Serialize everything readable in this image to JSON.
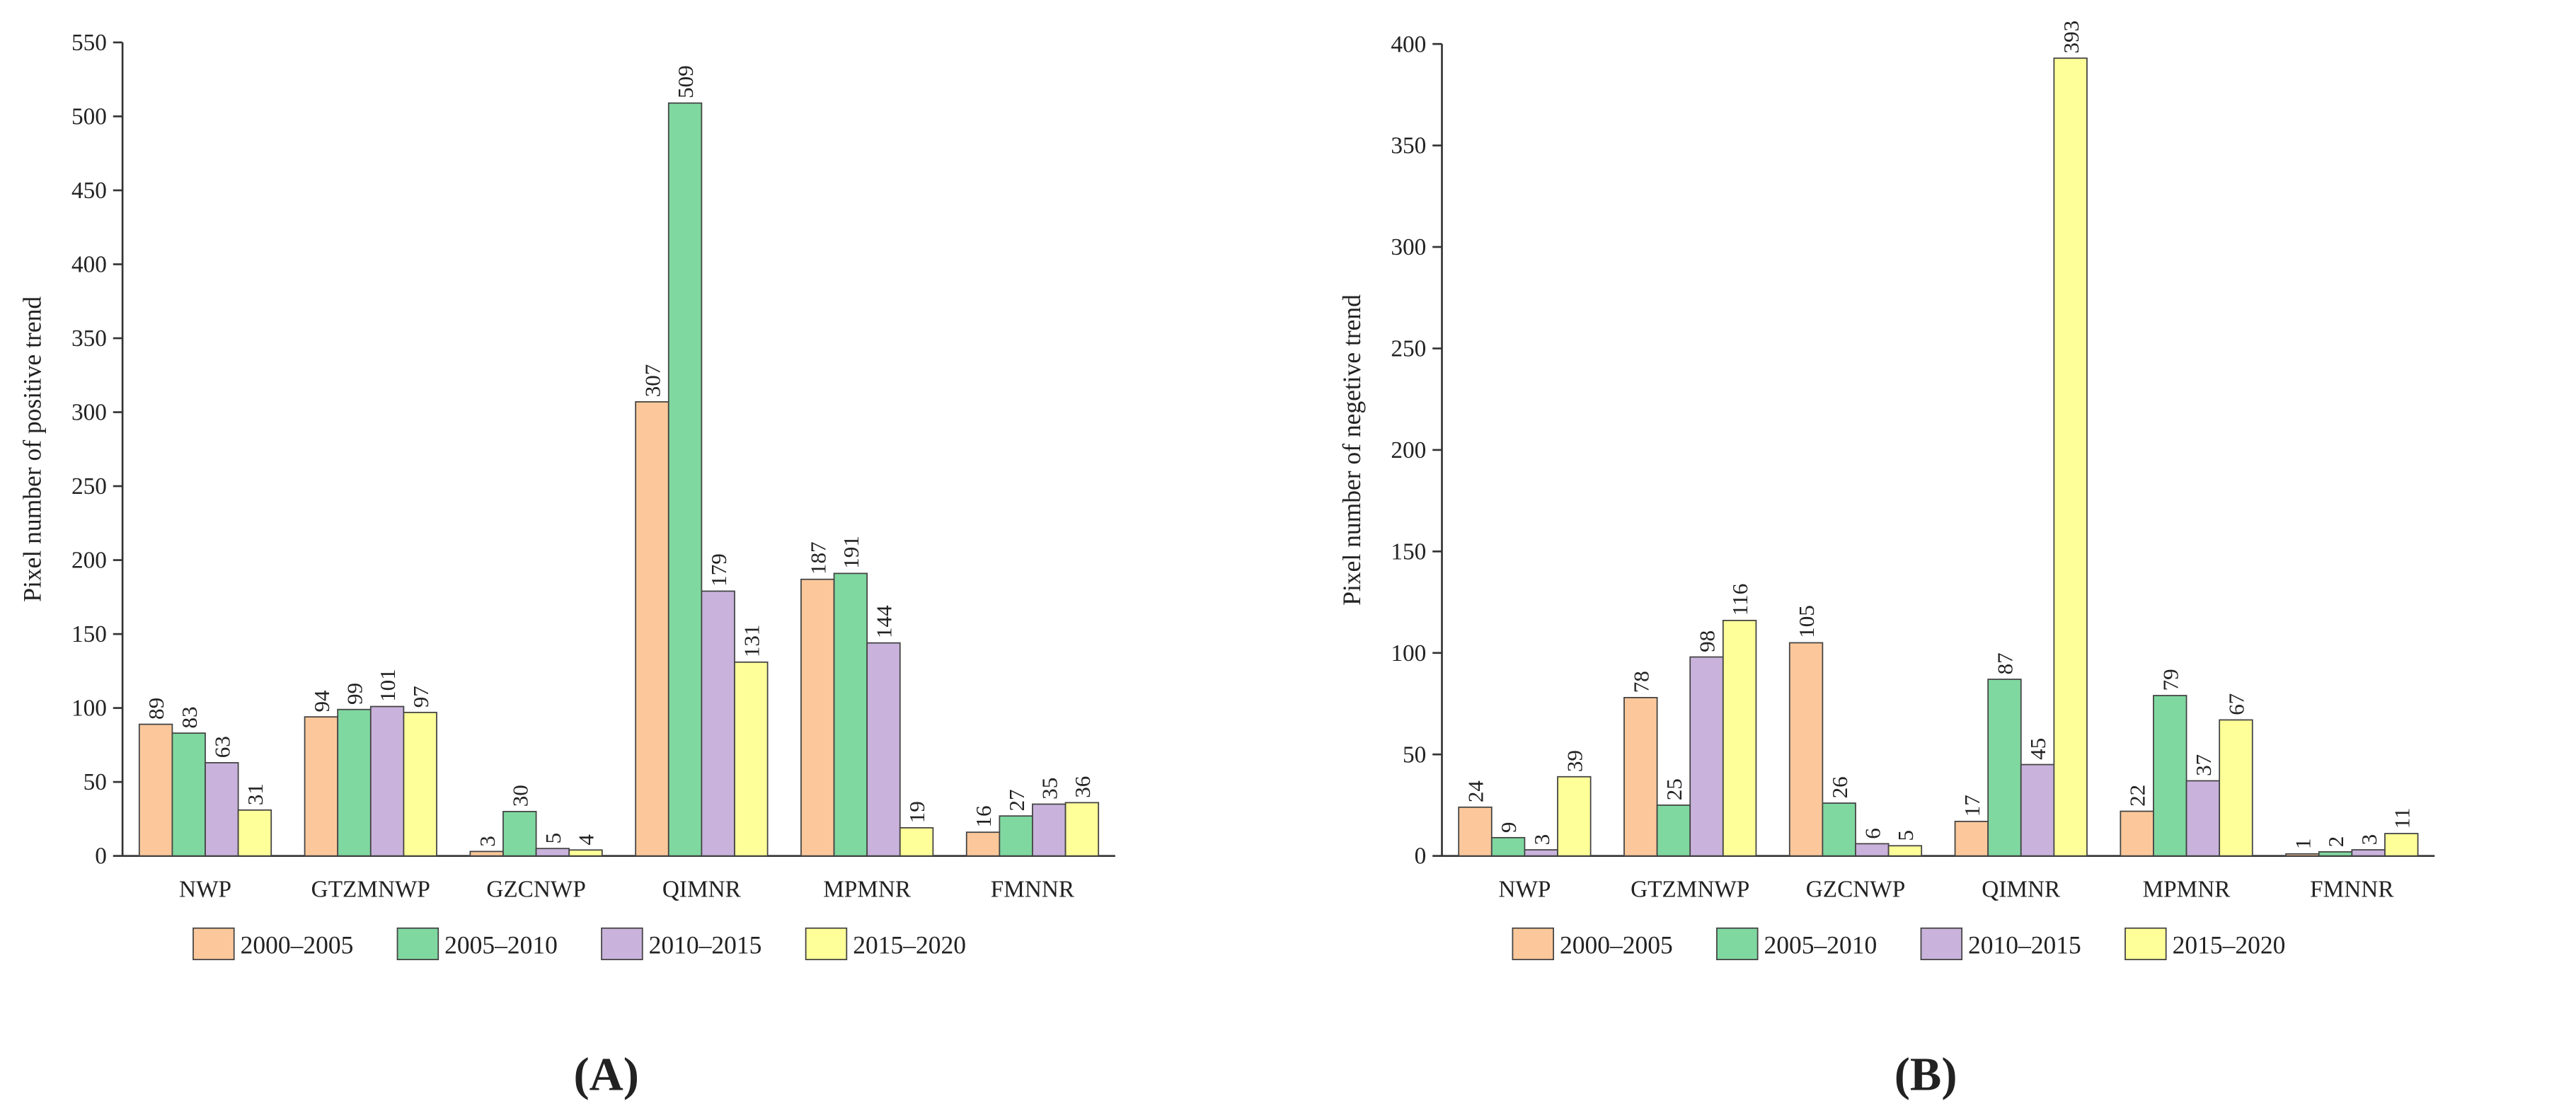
{
  "chart_data": [
    {
      "type": "bar",
      "panel_label": "(A)",
      "y_label": "Pixel number of positive trend",
      "categories": [
        "NWP",
        "GTZMNWP",
        "GZCNWP",
        "QIMNR",
        "MPMNR",
        "FMNNR"
      ],
      "series": [
        {
          "name": "2000–2005",
          "color": "#fcc89b",
          "values": [
            89,
            94,
            3,
            307,
            187,
            16
          ]
        },
        {
          "name": "2005–2010",
          "color": "#7fd8a0",
          "values": [
            83,
            99,
            30,
            509,
            191,
            27
          ]
        },
        {
          "name": "2010–2015",
          "color": "#c9b3dc",
          "values": [
            63,
            101,
            5,
            179,
            144,
            35
          ]
        },
        {
          "name": "2015–2020",
          "color": "#ffff99",
          "values": [
            31,
            97,
            4,
            131,
            19,
            36
          ]
        }
      ],
      "ylim": [
        0,
        550
      ],
      "yticks": [
        0,
        50,
        100,
        150,
        200,
        250,
        300,
        350,
        400,
        450,
        500,
        550
      ]
    },
    {
      "type": "bar",
      "panel_label": "(B)",
      "y_label": "Pixel number of negetive trend",
      "categories": [
        "NWP",
        "GTZMNWP",
        "GZCNWP",
        "QIMNR",
        "MPMNR",
        "FMNNR"
      ],
      "series": [
        {
          "name": "2000–2005",
          "color": "#fcc89b",
          "values": [
            24,
            78,
            105,
            17,
            22,
            1
          ]
        },
        {
          "name": "2005–2010",
          "color": "#7fd8a0",
          "values": [
            9,
            25,
            26,
            87,
            79,
            2
          ]
        },
        {
          "name": "2010–2015",
          "color": "#c9b3dc",
          "values": [
            3,
            98,
            6,
            45,
            37,
            3
          ]
        },
        {
          "name": "2015–2020",
          "color": "#ffff99",
          "values": [
            39,
            116,
            5,
            393,
            67,
            11
          ]
        }
      ],
      "ylim": [
        0,
        400
      ],
      "yticks": [
        0,
        50,
        100,
        150,
        200,
        250,
        300,
        350,
        400
      ]
    }
  ]
}
